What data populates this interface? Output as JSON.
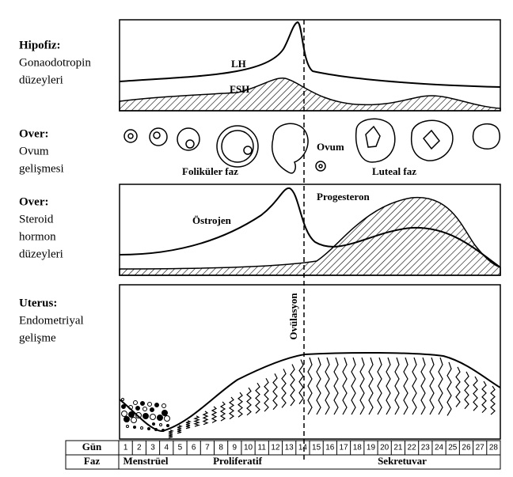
{
  "sections": [
    {
      "title": "Hipofiz:",
      "lines": [
        "Gonaodotropin",
        "düzeyleri"
      ]
    },
    {
      "title": "Over:",
      "lines": [
        "Ovum",
        "gelişmesi"
      ]
    },
    {
      "title": "Over:",
      "lines": [
        "Steroid",
        "hormon",
        "düzeyleri"
      ]
    },
    {
      "title": "Uterus:",
      "lines": [
        "Endometriyal",
        "gelişme"
      ]
    }
  ],
  "pituitary": {
    "lh": "LH",
    "fsh": "FSH"
  },
  "ovary": {
    "follicular": "Foliküler faz",
    "ovum": "Ovum",
    "luteal": "Luteal faz"
  },
  "steroids": {
    "estrogen": "Östrojen",
    "progesterone": "Progesteron"
  },
  "ovulation": "Ovülasyon",
  "table": {
    "day_header": "Gün",
    "phase_header": "Faz",
    "days": [
      1,
      2,
      3,
      4,
      5,
      6,
      7,
      8,
      9,
      10,
      11,
      12,
      13,
      14,
      15,
      16,
      17,
      18,
      19,
      20,
      21,
      22,
      23,
      24,
      25,
      26,
      27,
      28
    ],
    "phases": [
      "Menstrüel",
      "Proliferatif",
      "Sekretuvar"
    ]
  }
}
